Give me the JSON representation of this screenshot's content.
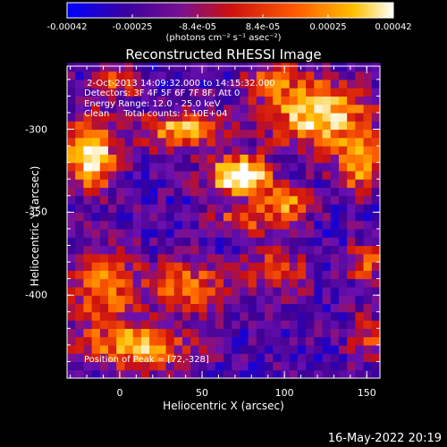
{
  "colorbar": {
    "ticks": [
      "-0.00042",
      "-0.00025",
      "-8.4e-05",
      "8.4e-05",
      "0.00025",
      "0.00042"
    ],
    "unit": "(photons cm⁻² s⁻¹ asec⁻²)"
  },
  "title": "Reconstructed RHESSI Image",
  "info_lines": [
    " 2-Oct-2013 14:09:32.000 to 14:15:32.000",
    "Detectors: 3F 4F 5F 6F 7F 8F, Att 0",
    "Energy Range: 12.0 - 25.0 keV",
    "Clean     Total counts: 1.10E+04"
  ],
  "peak_text": "Position of Peak = [72,-328]",
  "date_stamp": "16-May-2022 20:19",
  "chart_data": {
    "type": "heatmap",
    "title": "Reconstructed RHESSI Image",
    "xlabel": "Heliocentric X (arcsec)",
    "ylabel": "Heliocentric Y (arcsec)",
    "x_ticks": [
      "0",
      "50",
      "100",
      "150"
    ],
    "x_tick_values": [
      0,
      50,
      100,
      150
    ],
    "y_ticks": [
      "-300",
      "-350",
      "-400"
    ],
    "y_tick_values": [
      -300,
      -350,
      -400
    ],
    "xlim": [
      -32,
      158
    ],
    "ylim": [
      -450,
      -262
    ],
    "zlim": [
      -0.00042,
      0.00042
    ],
    "peak": [
      72,
      -328
    ],
    "colormap": [
      "#0000ff",
      "#400090",
      "#6a10b0",
      "#cc1010",
      "#ff6000",
      "#ffc000",
      "#ffffff"
    ],
    "sources": [
      {
        "x": 72,
        "y": -328,
        "amp": 1.0,
        "sx": 12,
        "sy": 8
      },
      {
        "x": -18,
        "y": -315,
        "amp": 0.85,
        "sx": 10,
        "sy": 14
      },
      {
        "x": 38,
        "y": -300,
        "amp": 0.6,
        "sx": 18,
        "sy": 8
      },
      {
        "x": 120,
        "y": -290,
        "amp": 0.75,
        "sx": 20,
        "sy": 14
      },
      {
        "x": 145,
        "y": -320,
        "amp": 0.6,
        "sx": 10,
        "sy": 12
      },
      {
        "x": 100,
        "y": -345,
        "amp": 0.55,
        "sx": 10,
        "sy": 8
      },
      {
        "x": 75,
        "y": -355,
        "amp": 0.45,
        "sx": 12,
        "sy": 6
      },
      {
        "x": -10,
        "y": -395,
        "amp": 0.55,
        "sx": 14,
        "sy": 14
      },
      {
        "x": 40,
        "y": -395,
        "amp": 0.5,
        "sx": 16,
        "sy": 10
      },
      {
        "x": 10,
        "y": -430,
        "amp": 0.6,
        "sx": 22,
        "sy": 10
      },
      {
        "x": 95,
        "y": -385,
        "amp": 0.35,
        "sx": 14,
        "sy": 10
      },
      {
        "x": 150,
        "y": -380,
        "amp": 0.4,
        "sx": 8,
        "sy": 8
      },
      {
        "x": 150,
        "y": -425,
        "amp": 0.35,
        "sx": 8,
        "sy": 10
      },
      {
        "x": 90,
        "y": -270,
        "amp": 0.45,
        "sx": 10,
        "sy": 8
      },
      {
        "x": 0,
        "y": -270,
        "amp": 0.4,
        "sx": 10,
        "sy": 6
      }
    ]
  }
}
